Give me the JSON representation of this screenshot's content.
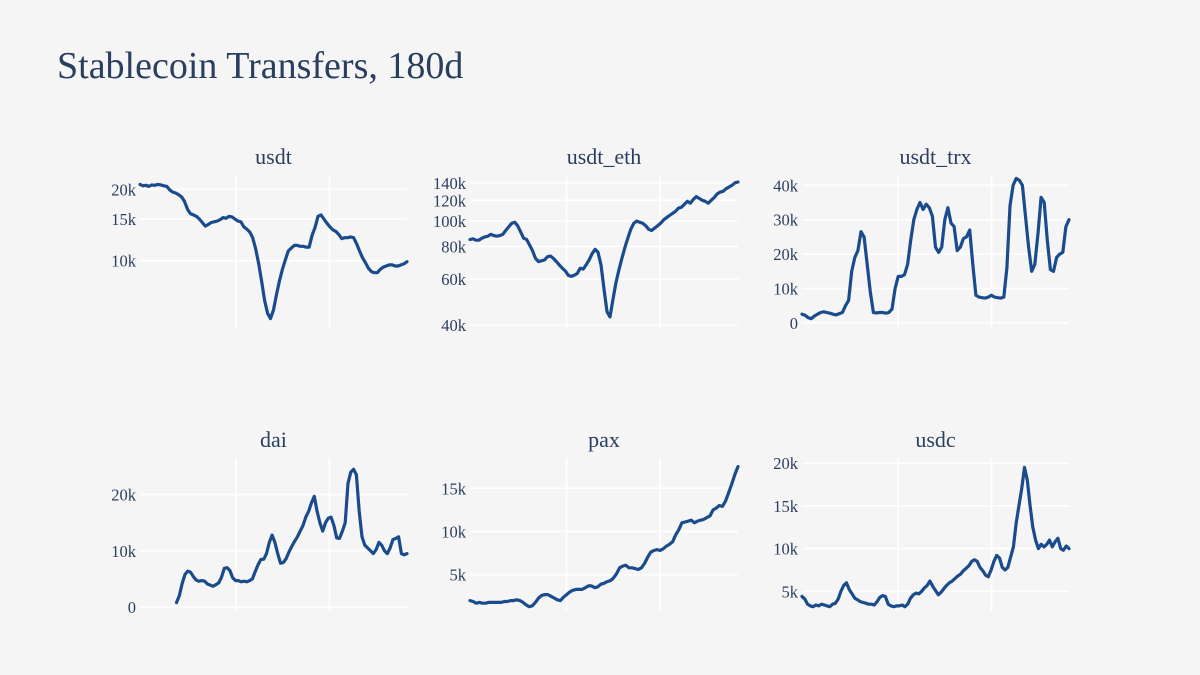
{
  "title": "Stablecoin Transfers, 180d",
  "colors": {
    "line": "#1a4b8c",
    "background": "#f5f5f5",
    "grid": "#ffffff",
    "text": "#2a3f5f"
  },
  "chart_data": [
    {
      "type": "line",
      "title": "usdt",
      "yscale": "log",
      "ylim": [
        5200,
        23000
      ],
      "yticks": [
        10000,
        15000,
        20000
      ],
      "ytick_labels": [
        "10k",
        "15k",
        "20k"
      ],
      "series": [
        {
          "values": [
            21000,
            20700,
            20800,
            20600,
            20900,
            20800,
            21000,
            20900,
            20700,
            20600,
            19900,
            19500,
            19300,
            19000,
            18600,
            17800,
            16500,
            15800,
            15600,
            15400,
            15000,
            14500,
            14000,
            14200,
            14500,
            14600,
            14700,
            14900,
            15200,
            15100,
            15400,
            15300,
            15000,
            14700,
            14600,
            13900,
            13600,
            13200,
            12500,
            11200,
            9700,
            8200,
            6800,
            6000,
            5700,
            6200,
            7200,
            8200,
            9200,
            10100,
            11000,
            11300,
            11600,
            11600,
            11500,
            11500,
            11400,
            11400,
            12800,
            13800,
            15400,
            15600,
            15000,
            14400,
            13900,
            13500,
            13300,
            12900,
            12400,
            12500,
            12500,
            12600,
            12500,
            11800,
            11000,
            10300,
            9800,
            9300,
            9000,
            8900,
            8900,
            9200,
            9400,
            9500,
            9600,
            9600,
            9500,
            9500,
            9600,
            9700,
            9900
          ]
        }
      ]
    },
    {
      "type": "line",
      "title": "usdt_eth",
      "yscale": "log",
      "ylim": [
        39000,
        150000
      ],
      "yticks": [
        40000,
        60000,
        80000,
        100000,
        120000,
        140000
      ],
      "ytick_labels": [
        "40k",
        "60k",
        "80k",
        "100k",
        "120k",
        "140k"
      ],
      "series": [
        {
          "values": [
            85000,
            85500,
            84500,
            84500,
            86000,
            87000,
            87500,
            89000,
            88000,
            87500,
            88000,
            89000,
            92000,
            95000,
            98000,
            99000,
            96000,
            91000,
            86000,
            85000,
            81000,
            77000,
            72000,
            70000,
            70500,
            71000,
            73000,
            73500,
            72000,
            70000,
            68000,
            66000,
            64500,
            62000,
            61500,
            62000,
            63000,
            66000,
            65500,
            68000,
            71000,
            75000,
            78000,
            76000,
            68000,
            55000,
            45000,
            43000,
            50000,
            58000,
            65000,
            72000,
            79000,
            86000,
            93000,
            98000,
            100000,
            99000,
            98000,
            96000,
            93000,
            92000,
            94000,
            96000,
            98000,
            101000,
            103000,
            105000,
            107000,
            109000,
            112000,
            113000,
            116000,
            119000,
            117000,
            121000,
            124000,
            122000,
            120000,
            119000,
            117000,
            120000,
            123000,
            127000,
            129000,
            130000,
            133000,
            135000,
            137000,
            140000,
            141000
          ]
        }
      ]
    },
    {
      "type": "line",
      "title": "usdt_trx",
      "ylim": [
        -1500,
        43000
      ],
      "yticks": [
        0,
        10000,
        20000,
        30000,
        40000
      ],
      "ytick_labels": [
        "0",
        "10k",
        "20k",
        "30k",
        "40k"
      ],
      "series": [
        {
          "values": [
            2500,
            2200,
            1500,
            1200,
            2000,
            2500,
            3000,
            3200,
            3000,
            2800,
            2500,
            2300,
            2700,
            3000,
            5000,
            6500,
            15000,
            19000,
            21000,
            26500,
            25000,
            17000,
            9000,
            3000,
            2900,
            3000,
            3000,
            2800,
            3000,
            4000,
            10000,
            13500,
            13500,
            14000,
            17000,
            24000,
            30000,
            33000,
            35000,
            33000,
            34500,
            33500,
            31000,
            22000,
            20500,
            22000,
            30000,
            33500,
            29000,
            28000,
            21000,
            22000,
            24500,
            25000,
            27000,
            17000,
            8000,
            7500,
            7300,
            7200,
            7500,
            8000,
            7500,
            7300,
            7200,
            7500,
            16000,
            34000,
            40000,
            42000,
            41500,
            40000,
            31000,
            22000,
            15000,
            17000,
            26000,
            36500,
            35000,
            24000,
            15500,
            15000,
            19000,
            20000,
            20500,
            28000,
            30000
          ]
        }
      ]
    },
    {
      "type": "line",
      "title": "dai",
      "ylim": [
        -700,
        26500
      ],
      "yticks": [
        0,
        10000,
        20000
      ],
      "ytick_labels": [
        "0",
        "10k",
        "20k"
      ],
      "series": [
        {
          "values": [
            null,
            null,
            null,
            null,
            null,
            null,
            null,
            null,
            null,
            null,
            null,
            null,
            null,
            800,
            2000,
            4200,
            5800,
            6400,
            6200,
            5400,
            4800,
            4600,
            4700,
            4600,
            4100,
            3900,
            3700,
            4000,
            4300,
            5300,
            6900,
            7000,
            6500,
            5200,
            4700,
            4700,
            4500,
            4600,
            4500,
            4700,
            5000,
            6300,
            7500,
            8500,
            8500,
            9500,
            11500,
            12800,
            11500,
            9500,
            7800,
            7900,
            8600,
            9800,
            10800,
            11700,
            12500,
            13500,
            14500,
            16000,
            17000,
            18500,
            19700,
            17000,
            15000,
            13500,
            15000,
            15800,
            16000,
            14500,
            12300,
            12200,
            13500,
            15000,
            22000,
            24000,
            24500,
            23500,
            17000,
            12500,
            11000,
            10500,
            10000,
            9500,
            10200,
            11500,
            11000,
            10000,
            9500,
            10500,
            12000,
            12200,
            12500,
            9500,
            9300,
            9500
          ]
        }
      ]
    },
    {
      "type": "line",
      "title": "pax",
      "ylim": [
        800,
        18500
      ],
      "yticks": [
        5000,
        10000,
        15000
      ],
      "ytick_labels": [
        "5k",
        "10k",
        "15k"
      ],
      "series": [
        {
          "values": [
            2000,
            1900,
            1700,
            1800,
            1700,
            1700,
            1800,
            1800,
            1800,
            1800,
            1800,
            1900,
            1900,
            2000,
            2000,
            2100,
            2000,
            1800,
            1500,
            1300,
            1400,
            1800,
            2300,
            2600,
            2700,
            2700,
            2500,
            2300,
            2100,
            2000,
            2400,
            2700,
            3000,
            3200,
            3300,
            3300,
            3300,
            3500,
            3700,
            3700,
            3500,
            3600,
            3900,
            4000,
            4200,
            4300,
            4600,
            5100,
            5800,
            6000,
            6100,
            5800,
            5800,
            5700,
            5600,
            5800,
            6300,
            7000,
            7600,
            7800,
            7900,
            7800,
            8000,
            8300,
            8500,
            8800,
            9600,
            10200,
            11000,
            11100,
            11200,
            11300,
            11000,
            11200,
            11300,
            11400,
            11600,
            11800,
            12500,
            12700,
            13000,
            12900,
            13500,
            14500,
            15500,
            16600,
            17500
          ]
        }
      ]
    },
    {
      "type": "line",
      "title": "usdc",
      "ylim": [
        2700,
        20600
      ],
      "yticks": [
        5000,
        10000,
        15000,
        20000
      ],
      "ytick_labels": [
        "5k",
        "10k",
        "15k",
        "20k"
      ],
      "series": [
        {
          "values": [
            4400,
            4100,
            3500,
            3300,
            3200,
            3400,
            3300,
            3500,
            3400,
            3300,
            3200,
            3500,
            3600,
            4100,
            5000,
            5700,
            6000,
            5200,
            4700,
            4200,
            4000,
            3800,
            3700,
            3600,
            3500,
            3500,
            3400,
            3800,
            4300,
            4500,
            4400,
            3500,
            3300,
            3200,
            3300,
            3300,
            3400,
            3200,
            3500,
            4200,
            4600,
            4800,
            4700,
            5000,
            5400,
            5700,
            6200,
            5600,
            5100,
            4600,
            4900,
            5300,
            5700,
            6000,
            6200,
            6500,
            6800,
            7000,
            7400,
            7700,
            8000,
            8500,
            8700,
            8500,
            7800,
            7400,
            6900,
            6700,
            7500,
            8500,
            9200,
            8900,
            7800,
            7500,
            7800,
            9000,
            10200,
            13000,
            15000,
            17000,
            19500,
            18000,
            15000,
            12500,
            11000,
            10000,
            10500,
            10200,
            10500,
            11000,
            10200,
            10800,
            11200,
            10000,
            9800,
            10300,
            10000
          ]
        }
      ]
    }
  ]
}
